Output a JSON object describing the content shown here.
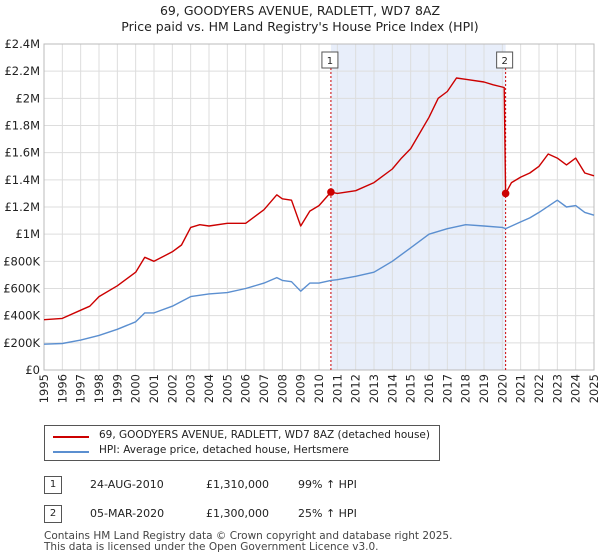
{
  "header": {
    "title": "69, GOODYERS AVENUE, RADLETT, WD7 8AZ",
    "subtitle": "Price paid vs. HM Land Registry's House Price Index (HPI)"
  },
  "colors": {
    "property": "#cc0000",
    "hpi": "#5b8fd0",
    "shade": "#e8eefa",
    "grid": "#dddddd"
  },
  "chart_data": {
    "type": "line",
    "ylim": [
      0,
      2400000
    ],
    "xlim": [
      1995,
      2025
    ],
    "ytick_values": [
      0,
      200000,
      400000,
      600000,
      800000,
      1000000,
      1200000,
      1400000,
      1600000,
      1800000,
      2000000,
      2200000,
      2400000
    ],
    "ytick_labels": [
      "£0",
      "£200K",
      "£400K",
      "£600K",
      "£800K",
      "£1M",
      "£1.2M",
      "£1.4M",
      "£1.6M",
      "£1.8M",
      "£2M",
      "£2.2M",
      "£2.4M"
    ],
    "xtick_labels": [
      "1995",
      "1996",
      "1997",
      "1998",
      "1999",
      "2000",
      "2001",
      "2002",
      "2003",
      "2004",
      "2005",
      "2006",
      "2007",
      "2008",
      "2009",
      "2010",
      "2011",
      "2012",
      "2013",
      "2014",
      "2015",
      "2016",
      "2017",
      "2018",
      "2019",
      "2020",
      "2021",
      "2022",
      "2023",
      "2024",
      "2025"
    ],
    "shaded_range": [
      2010.65,
      2020.18
    ],
    "series": [
      {
        "name": "69, GOODYERS AVENUE, RADLETT, WD7 8AZ (detached house)",
        "x": [
          1995,
          1996,
          1997,
          1997.5,
          1998,
          1999,
          2000,
          2000.5,
          2001,
          2002,
          2002.5,
          2003,
          2003.5,
          2004,
          2005,
          2006,
          2007,
          2007.7,
          2008,
          2008.5,
          2009,
          2009.5,
          2010,
          2010.65,
          2011,
          2012,
          2013,
          2014,
          2014.5,
          2015,
          2016,
          2016.5,
          2017,
          2017.5,
          2018,
          2019,
          2019.5,
          2020.1,
          2020.18,
          2020.5,
          2021,
          2021.5,
          2022,
          2022.5,
          2023,
          2023.5,
          2024,
          2024.5,
          2025
        ],
        "y": [
          370000,
          380000,
          440000,
          470000,
          540000,
          620000,
          720000,
          830000,
          800000,
          870000,
          920000,
          1050000,
          1070000,
          1060000,
          1080000,
          1080000,
          1180000,
          1290000,
          1260000,
          1250000,
          1060000,
          1170000,
          1210000,
          1310000,
          1300000,
          1320000,
          1380000,
          1480000,
          1560000,
          1630000,
          1860000,
          2000000,
          2050000,
          2150000,
          2140000,
          2120000,
          2100000,
          2080000,
          1300000,
          1380000,
          1420000,
          1450000,
          1500000,
          1590000,
          1560000,
          1510000,
          1560000,
          1450000,
          1430000
        ]
      },
      {
        "name": "HPI: Average price, detached house, Hertsmere",
        "x": [
          1995,
          1996,
          1997,
          1998,
          1999,
          2000,
          2000.5,
          2001,
          2002,
          2003,
          2004,
          2005,
          2006,
          2007,
          2007.7,
          2008,
          2008.5,
          2009,
          2009.5,
          2010,
          2010.65,
          2011,
          2012,
          2013,
          2014,
          2015,
          2016,
          2017,
          2018,
          2019,
          2020,
          2020.18,
          2021,
          2021.5,
          2022,
          2023,
          2023.5,
          2024,
          2024.5,
          2025
        ],
        "y": [
          190000,
          195000,
          220000,
          255000,
          300000,
          355000,
          420000,
          420000,
          470000,
          540000,
          560000,
          570000,
          600000,
          640000,
          680000,
          660000,
          650000,
          580000,
          640000,
          640000,
          660000,
          665000,
          690000,
          720000,
          800000,
          900000,
          1000000,
          1040000,
          1070000,
          1060000,
          1050000,
          1040000,
          1090000,
          1120000,
          1160000,
          1250000,
          1200000,
          1210000,
          1160000,
          1140000
        ]
      }
    ],
    "annotations": [
      {
        "label": "1",
        "x": 2010.65,
        "y": 1310000
      },
      {
        "label": "2",
        "x": 2020.18,
        "y": 1300000
      }
    ]
  },
  "legend": {
    "property": "69, GOODYERS AVENUE, RADLETT, WD7 8AZ (detached house)",
    "hpi": "HPI: Average price, detached house, Hertsmere"
  },
  "transactions": [
    {
      "num": "1",
      "date": "24-AUG-2010",
      "price": "£1,310,000",
      "hpi": "99% ↑ HPI"
    },
    {
      "num": "2",
      "date": "05-MAR-2020",
      "price": "£1,300,000",
      "hpi": "25% ↑ HPI"
    }
  ],
  "footer": {
    "line1": "Contains HM Land Registry data © Crown copyright and database right 2025.",
    "line2": "This data is licensed under the Open Government Licence v3.0."
  }
}
